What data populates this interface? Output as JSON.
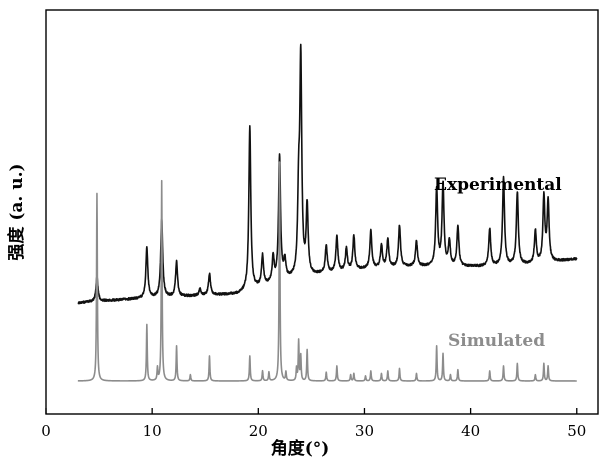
{
  "chart_data": {
    "type": "line",
    "xlabel": "角度(°)",
    "ylabel": "强度 (a. u.)",
    "xlim": [
      0,
      52
    ],
    "xticks": [
      0,
      10,
      20,
      30,
      40,
      50
    ],
    "yticks": [],
    "grid": false,
    "legend": "inline labels, right side next to each trace",
    "colors": {
      "experimental": "#111111",
      "simulated": "#8c8c8c",
      "axis": "#000000"
    },
    "series": [
      {
        "name": "Experimental",
        "baseline": [
          [
            3,
            0.01
          ],
          [
            10,
            0.05
          ],
          [
            18,
            0.08
          ],
          [
            22,
            0.18
          ],
          [
            26,
            0.24
          ],
          [
            30,
            0.28
          ],
          [
            34,
            0.3
          ],
          [
            38,
            0.3
          ],
          [
            42,
            0.3
          ],
          [
            46,
            0.32
          ],
          [
            50,
            0.36
          ]
        ],
        "peaks": [
          [
            4.8,
            0.2
          ],
          [
            9.5,
            0.4
          ],
          [
            10.9,
            0.62
          ],
          [
            12.3,
            0.28
          ],
          [
            14.5,
            0.05
          ],
          [
            15.4,
            0.17
          ],
          [
            19.2,
            1.3
          ],
          [
            20.4,
            0.24
          ],
          [
            21.4,
            0.2
          ],
          [
            22.0,
            1.0
          ],
          [
            22.5,
            0.15
          ],
          [
            23.8,
            0.6
          ],
          [
            24.0,
            1.7
          ],
          [
            24.6,
            0.55
          ],
          [
            26.4,
            0.22
          ],
          [
            27.4,
            0.28
          ],
          [
            28.3,
            0.18
          ],
          [
            29.0,
            0.27
          ],
          [
            30.6,
            0.3
          ],
          [
            31.6,
            0.18
          ],
          [
            32.2,
            0.22
          ],
          [
            33.3,
            0.33
          ],
          [
            34.9,
            0.2
          ],
          [
            36.8,
            0.62
          ],
          [
            37.4,
            0.65
          ],
          [
            38.0,
            0.2
          ],
          [
            38.8,
            0.32
          ],
          [
            41.8,
            0.3
          ],
          [
            43.1,
            0.7
          ],
          [
            44.4,
            0.58
          ],
          [
            46.1,
            0.26
          ],
          [
            46.9,
            0.52
          ],
          [
            47.3,
            0.48
          ]
        ]
      },
      {
        "name": "Simulated",
        "baseline": [
          [
            3,
            0.0
          ],
          [
            50,
            0.0
          ]
        ],
        "peaks": [
          [
            4.8,
            1.5
          ],
          [
            9.5,
            0.45
          ],
          [
            10.5,
            0.1
          ],
          [
            10.9,
            1.6
          ],
          [
            12.3,
            0.28
          ],
          [
            13.6,
            0.05
          ],
          [
            15.4,
            0.2
          ],
          [
            19.2,
            0.2
          ],
          [
            20.4,
            0.08
          ],
          [
            21.0,
            0.07
          ],
          [
            22.0,
            1.75
          ],
          [
            22.6,
            0.07
          ],
          [
            23.6,
            0.1
          ],
          [
            23.8,
            0.32
          ],
          [
            24.0,
            0.2
          ],
          [
            24.6,
            0.25
          ],
          [
            26.4,
            0.07
          ],
          [
            27.4,
            0.12
          ],
          [
            28.7,
            0.05
          ],
          [
            29.0,
            0.06
          ],
          [
            30.1,
            0.04
          ],
          [
            30.6,
            0.08
          ],
          [
            31.6,
            0.06
          ],
          [
            32.2,
            0.08
          ],
          [
            33.3,
            0.1
          ],
          [
            34.9,
            0.06
          ],
          [
            36.8,
            0.28
          ],
          [
            37.4,
            0.22
          ],
          [
            38.1,
            0.05
          ],
          [
            38.8,
            0.09
          ],
          [
            41.8,
            0.08
          ],
          [
            43.1,
            0.12
          ],
          [
            44.4,
            0.14
          ],
          [
            46.1,
            0.05
          ],
          [
            46.9,
            0.14
          ],
          [
            47.3,
            0.12
          ]
        ]
      }
    ]
  }
}
